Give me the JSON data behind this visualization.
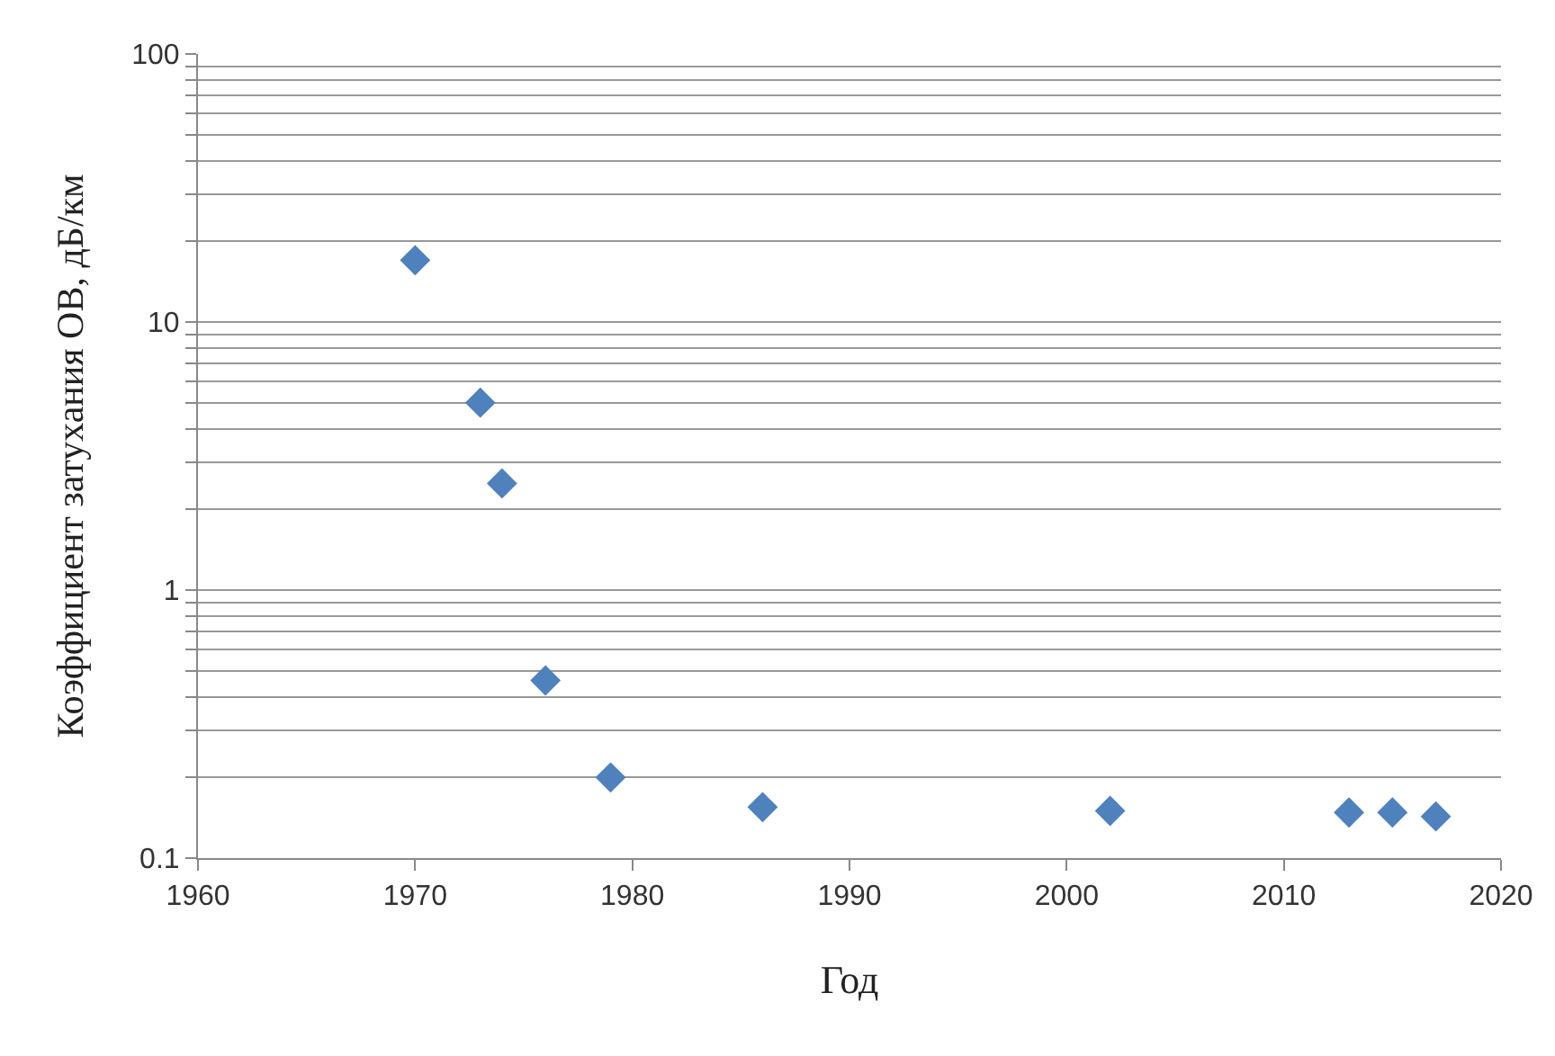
{
  "chart_data": {
    "type": "scatter",
    "xlabel": "Год",
    "ylabel": "Коэффициент затухания ОВ, дБ/км",
    "x": [
      1970,
      1973,
      1974,
      1976,
      1979,
      1986,
      2002,
      2013,
      2015,
      2017
    ],
    "series": [
      {
        "color": "#4f81bd",
        "values": [
          17,
          5,
          2.5,
          0.46,
          0.2,
          0.155,
          0.15,
          0.148,
          0.148,
          0.143
        ]
      }
    ],
    "xlim": [
      1960,
      2020
    ],
    "xticks": [
      1960,
      1970,
      1980,
      1990,
      2000,
      2010,
      2020
    ],
    "ylim": [
      0.1,
      100
    ],
    "log": "y",
    "yticks": [
      0.1,
      {
        "value": 0.2,
        "label": null
      },
      {
        "value": 0.3,
        "label": null
      },
      {
        "value": 0.4,
        "label": null
      },
      {
        "value": 0.5,
        "label": null
      },
      {
        "value": 0.6,
        "label": null
      },
      {
        "value": 0.7,
        "label": null
      },
      {
        "value": 0.8,
        "label": null
      },
      {
        "value": 0.9,
        "label": null
      },
      1,
      {
        "value": 2,
        "label": null
      },
      {
        "value": 3,
        "label": null
      },
      {
        "value": 4,
        "label": null
      },
      {
        "value": 5,
        "label": null
      },
      {
        "value": 6,
        "label": null
      },
      {
        "value": 7,
        "label": null
      },
      {
        "value": 8,
        "label": null
      },
      {
        "value": 9,
        "label": null
      },
      10,
      {
        "value": 20,
        "label": null
      },
      {
        "value": 30,
        "label": null
      },
      {
        "value": 40,
        "label": null
      },
      {
        "value": 50,
        "label": null
      },
      {
        "value": 60,
        "label": null
      },
      {
        "value": 70,
        "label": null
      },
      {
        "value": 80,
        "label": null
      },
      {
        "value": 90,
        "label": null
      },
      100
    ],
    "grid": "y",
    "marker": "diamond",
    "legend": false
  }
}
